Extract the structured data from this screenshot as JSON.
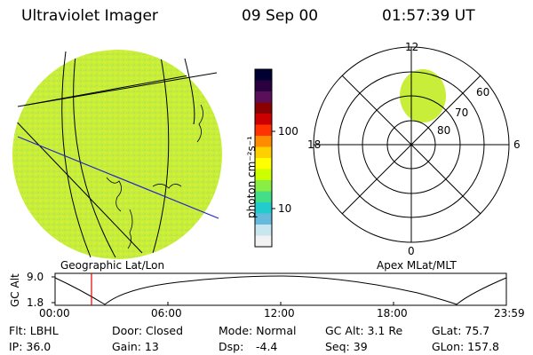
{
  "header": {
    "instrument": "Ultraviolet Imager",
    "date": "09 Sep 00",
    "time": "01:57:39 UT"
  },
  "colorbar": {
    "unit_label": "photon cm⁻²s⁻¹",
    "ticks": [
      "100",
      "10"
    ],
    "colors": [
      "#000033",
      "#2a0040",
      "#5a0f5a",
      "#8b0000",
      "#cc0000",
      "#ff3300",
      "#ff8c00",
      "#ffd000",
      "#ffff00",
      "#ccff00",
      "#88ee44",
      "#44dd88",
      "#22cccc",
      "#66bbdd",
      "#c8e6ee",
      "#f2f2f2"
    ]
  },
  "left_panel": {
    "caption": "Geographic Lat/Lon",
    "fill_color": "#c8ee3a"
  },
  "right_panel": {
    "caption": "Apex MLat/MLT",
    "mlt_labels": {
      "top": "12",
      "left": "18",
      "right": "6",
      "bottom": "0"
    },
    "lat_labels": [
      "60",
      "70",
      "80"
    ],
    "oval_color": "#c8ee3a"
  },
  "altitude_plot": {
    "ylabel": "GC Alt",
    "yticks": [
      "9.0",
      "1.8"
    ],
    "xticks": [
      "00:00",
      "06:00",
      "12:00",
      "18:00",
      "23:59"
    ],
    "marker_color": "#dd0000"
  },
  "info": {
    "flt": "Flt: LBHL",
    "door": "Door: Closed",
    "mode": "Mode: Normal",
    "gc_alt": "GC Alt: 3.1 Re",
    "glat": "GLat: 75.7",
    "ip": "IP: 36.0",
    "gain": "Gain: 13",
    "dsp_label": "Dsp:",
    "dsp_value": "-4.4",
    "seq": "Seq: 39",
    "glon": "GLon: 157.8"
  }
}
